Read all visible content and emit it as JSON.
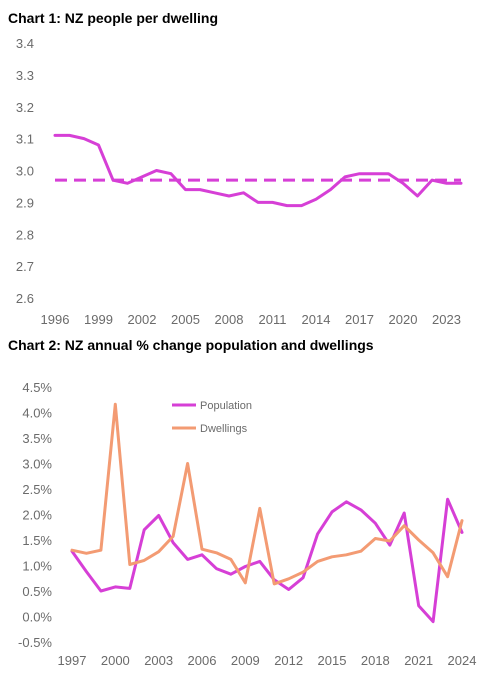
{
  "chart_data": [
    {
      "type": "line",
      "title": "Chart 1: NZ people per dwelling",
      "xlabel": "",
      "ylabel": "",
      "ylim": [
        2.6,
        3.4
      ],
      "xlim": [
        1996,
        2024
      ],
      "y_ticks": [
        "2.6",
        "2.7",
        "2.8",
        "2.9",
        "3.0",
        "3.1",
        "3.2",
        "3.3",
        "3.4"
      ],
      "x_ticks": [
        "1996",
        "1999",
        "2002",
        "2005",
        "2008",
        "2011",
        "2014",
        "2017",
        "2020",
        "2023"
      ],
      "grid": false,
      "colors": {
        "series": "#d63fd6",
        "average": "#d63fd6"
      },
      "x": [
        1996,
        1997,
        1998,
        1999,
        2000,
        2001,
        2002,
        2003,
        2004,
        2005,
        2006,
        2007,
        2008,
        2009,
        2010,
        2011,
        2012,
        2013,
        2014,
        2015,
        2016,
        2017,
        2018,
        2019,
        2020,
        2021,
        2022,
        2023,
        2024
      ],
      "series": [
        {
          "values": [
            3.11,
            3.11,
            3.1,
            3.08,
            2.97,
            2.96,
            2.98,
            3.0,
            2.99,
            2.94,
            2.94,
            2.93,
            2.92,
            2.93,
            2.9,
            2.9,
            2.89,
            2.89,
            2.91,
            2.94,
            2.98,
            2.99,
            2.99,
            2.99,
            2.96,
            2.92,
            2.97,
            2.96,
            2.96
          ],
          "style": "solid"
        },
        {
          "values": [
            2.97,
            2.97,
            2.97,
            2.97,
            2.97,
            2.97,
            2.97,
            2.97,
            2.97,
            2.97,
            2.97,
            2.97,
            2.97,
            2.97,
            2.97,
            2.97,
            2.97,
            2.97,
            2.97,
            2.97,
            2.97,
            2.97,
            2.97,
            2.97,
            2.97,
            2.97,
            2.97,
            2.97,
            2.97
          ],
          "style": "dashed"
        }
      ]
    },
    {
      "type": "line",
      "title": "Chart 2: NZ annual % change population and dwellings",
      "xlabel": "",
      "ylabel": "",
      "ylim": [
        -0.5,
        4.5
      ],
      "xlim": [
        1997,
        2024
      ],
      "y_ticks": [
        "-0.5%",
        "0.0%",
        "0.5%",
        "1.0%",
        "1.5%",
        "2.0%",
        "2.5%",
        "3.0%",
        "3.5%",
        "4.0%",
        "4.5%"
      ],
      "x_ticks": [
        "1997",
        "2000",
        "2003",
        "2006",
        "2009",
        "2012",
        "2015",
        "2018",
        "2021",
        "2024"
      ],
      "grid": false,
      "legend_position": "top-center",
      "x": [
        1997,
        1998,
        1999,
        2000,
        2001,
        2002,
        2003,
        2004,
        2005,
        2006,
        2007,
        2008,
        2009,
        2010,
        2011,
        2012,
        2013,
        2014,
        2015,
        2016,
        2017,
        2018,
        2019,
        2020,
        2021,
        2022,
        2023,
        2024
      ],
      "series": [
        {
          "name": "Population",
          "color": "#d63fd6",
          "values": [
            1.28,
            0.88,
            0.5,
            0.58,
            0.55,
            1.7,
            1.98,
            1.45,
            1.12,
            1.21,
            0.94,
            0.83,
            0.98,
            1.08,
            0.72,
            0.53,
            0.76,
            1.62,
            2.05,
            2.25,
            2.09,
            1.83,
            1.4,
            2.03,
            0.21,
            -0.1,
            2.3,
            1.65
          ]
        },
        {
          "name": "Dwellings",
          "color": "#f39b73",
          "values": [
            1.3,
            1.24,
            1.3,
            4.16,
            1.02,
            1.1,
            1.27,
            1.57,
            3.0,
            1.32,
            1.25,
            1.12,
            0.66,
            2.12,
            0.64,
            0.74,
            0.87,
            1.08,
            1.17,
            1.21,
            1.28,
            1.53,
            1.48,
            1.78,
            1.5,
            1.25,
            0.78,
            1.88
          ]
        }
      ]
    }
  ]
}
